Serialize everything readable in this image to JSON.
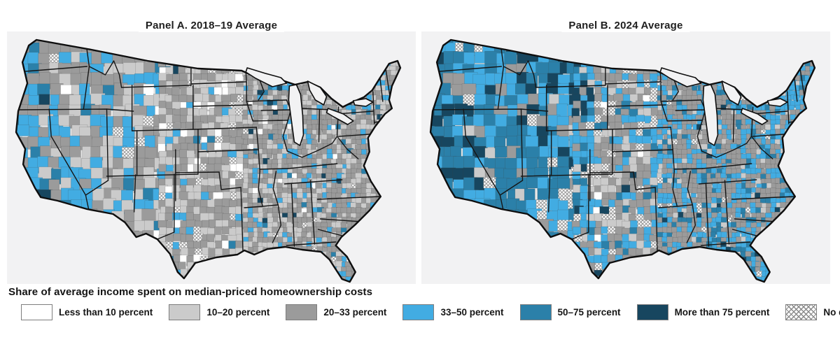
{
  "figure": {
    "map_type": "choropleth",
    "geography": "Contiguous United States counties",
    "panels": [
      {
        "id": "A",
        "title": "Panel A. 2018–19 Average"
      },
      {
        "id": "B",
        "title": "Panel B. 2024 Average"
      }
    ],
    "legend": {
      "title": "Share of average income spent on median-priced homeownership costs",
      "items": [
        {
          "key": "lt10",
          "label": "Less than 10 percent",
          "color": "#ffffff",
          "swatch": "solid"
        },
        {
          "key": "p10_20",
          "label": "10–20 percent",
          "color": "#cbcbcb",
          "swatch": "solid"
        },
        {
          "key": "p20_33",
          "label": "20–33 percent",
          "color": "#9b9b9b",
          "swatch": "solid"
        },
        {
          "key": "p33_50",
          "label": "33–50 percent",
          "color": "#42ace2",
          "swatch": "solid"
        },
        {
          "key": "p50_75",
          "label": "50–75 percent",
          "color": "#2b80a9",
          "swatch": "solid"
        },
        {
          "key": "gt75",
          "label": "More than 75 percent",
          "color": "#17465f",
          "swatch": "solid"
        },
        {
          "key": "nodata",
          "label": "No data",
          "color": "#ffffff",
          "swatch": "crosshatch"
        }
      ]
    }
  }
}
